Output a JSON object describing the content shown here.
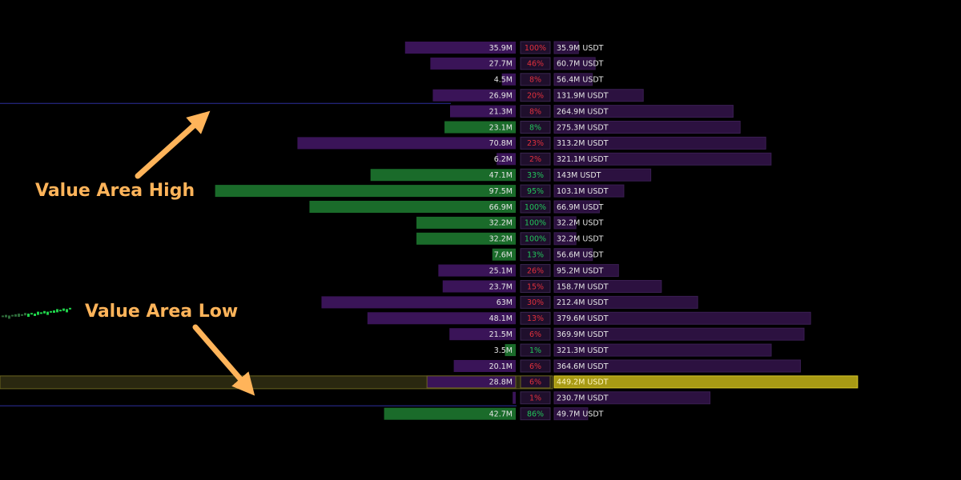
{
  "annotations": {
    "vah_label": "Value Area High",
    "val_label": "Value Area Low"
  },
  "colors": {
    "background": "#000000",
    "buy_bar": "#1a6b2a",
    "sell_bar": "#3a1458",
    "volume_bar": "#2c1140",
    "poc_bar": "#a89a14",
    "poc_row_bg": "#2a2810",
    "poc_border": "#6b6420",
    "pct_box": "#1f0f2c",
    "pct_box_border": "#3a2650",
    "pct_sell_text": "#e0303c",
    "pct_buy_text": "#22c45a",
    "value_line": "#2d2f9e",
    "annotation": "#ffb45a",
    "bar_text": "#e6e6e6",
    "price_ticks": "#1fd14a"
  },
  "chart_data": {
    "type": "bar",
    "title": "",
    "description": "Volume profile rows: delta bar (left), dominant-side percentage (middle), total volume bar (right)",
    "rows": [
      {
        "delta": 35.9,
        "delta_label": "35.9M",
        "side": "sell",
        "pct_label": "100%",
        "volume": 35.9,
        "volume_label": "35.9M USDT"
      },
      {
        "delta": 27.7,
        "delta_label": "27.7M",
        "side": "sell",
        "pct_label": "46%",
        "volume": 60.7,
        "volume_label": "60.7M USDT"
      },
      {
        "delta": 4.5,
        "delta_label": "4.5M",
        "side": "sell",
        "pct_label": "8%",
        "volume": 56.4,
        "volume_label": "56.4M USDT"
      },
      {
        "delta": 26.9,
        "delta_label": "26.9M",
        "side": "sell",
        "pct_label": "20%",
        "volume": 131.9,
        "volume_label": "131.9M USDT"
      },
      {
        "delta": 21.3,
        "delta_label": "21.3M",
        "side": "sell",
        "pct_label": "8%",
        "volume": 264.9,
        "volume_label": "264.9M USDT"
      },
      {
        "delta": 23.1,
        "delta_label": "23.1M",
        "side": "buy",
        "pct_label": "8%",
        "volume": 275.3,
        "volume_label": "275.3M USDT"
      },
      {
        "delta": 70.8,
        "delta_label": "70.8M",
        "side": "sell",
        "pct_label": "23%",
        "volume": 313.2,
        "volume_label": "313.2M USDT"
      },
      {
        "delta": 6.2,
        "delta_label": "6.2M",
        "side": "sell",
        "pct_label": "2%",
        "volume": 321.1,
        "volume_label": "321.1M USDT"
      },
      {
        "delta": 47.1,
        "delta_label": "47.1M",
        "side": "buy",
        "pct_label": "33%",
        "volume": 143,
        "volume_label": "143M USDT"
      },
      {
        "delta": 97.5,
        "delta_label": "97.5M",
        "side": "buy",
        "pct_label": "95%",
        "volume": 103.1,
        "volume_label": "103.1M USDT"
      },
      {
        "delta": 66.9,
        "delta_label": "66.9M",
        "side": "buy",
        "pct_label": "100%",
        "volume": 66.9,
        "volume_label": "66.9M USDT"
      },
      {
        "delta": 32.2,
        "delta_label": "32.2M",
        "side": "buy",
        "pct_label": "100%",
        "volume": 32.2,
        "volume_label": "32.2M USDT"
      },
      {
        "delta": 32.2,
        "delta_label": "32.2M",
        "side": "buy",
        "pct_label": "100%",
        "volume": 32.2,
        "volume_label": "32.2M USDT"
      },
      {
        "delta": 7.6,
        "delta_label": "7.6M",
        "side": "buy",
        "pct_label": "13%",
        "volume": 56.6,
        "volume_label": "56.6M USDT"
      },
      {
        "delta": 25.1,
        "delta_label": "25.1M",
        "side": "sell",
        "pct_label": "26%",
        "volume": 95.2,
        "volume_label": "95.2M USDT"
      },
      {
        "delta": 23.7,
        "delta_label": "23.7M",
        "side": "sell",
        "pct_label": "15%",
        "volume": 158.7,
        "volume_label": "158.7M USDT"
      },
      {
        "delta": 63,
        "delta_label": "63M",
        "side": "sell",
        "pct_label": "30%",
        "volume": 212.4,
        "volume_label": "212.4M USDT"
      },
      {
        "delta": 48.1,
        "delta_label": "48.1M",
        "side": "sell",
        "pct_label": "13%",
        "volume": 379.6,
        "volume_label": "379.6M USDT"
      },
      {
        "delta": 21.5,
        "delta_label": "21.5M",
        "side": "sell",
        "pct_label": "6%",
        "volume": 369.9,
        "volume_label": "369.9M USDT"
      },
      {
        "delta": 3.5,
        "delta_label": "3.5M",
        "side": "buy",
        "pct_label": "1%",
        "volume": 321.3,
        "volume_label": "321.3M USDT"
      },
      {
        "delta": 20.1,
        "delta_label": "20.1M",
        "side": "sell",
        "pct_label": "6%",
        "volume": 364.6,
        "volume_label": "364.6M USDT"
      },
      {
        "delta": 28.8,
        "delta_label": "28.8M",
        "side": "sell",
        "pct_label": "6%",
        "volume": 449.2,
        "volume_label": "449.2M USDT",
        "poc": true
      },
      {
        "delta": 1.0,
        "delta_label": "",
        "side": "sell",
        "pct_label": "1%",
        "volume": 230.7,
        "volume_label": "230.7M USDT"
      },
      {
        "delta": 42.7,
        "delta_label": "42.7M",
        "side": "buy",
        "pct_label": "86%",
        "volume": 49.7,
        "volume_label": "49.7M USDT"
      }
    ],
    "value_area": {
      "high_after_row": 3,
      "low_after_row": 22
    },
    "delta_max": 97.5,
    "volume_max": 449.2,
    "price_ticks": [
      2,
      3,
      2,
      3,
      4,
      5,
      4,
      6,
      5,
      6,
      5,
      8,
      7,
      9,
      8,
      9,
      10,
      12,
      11,
      13,
      12,
      14
    ]
  }
}
